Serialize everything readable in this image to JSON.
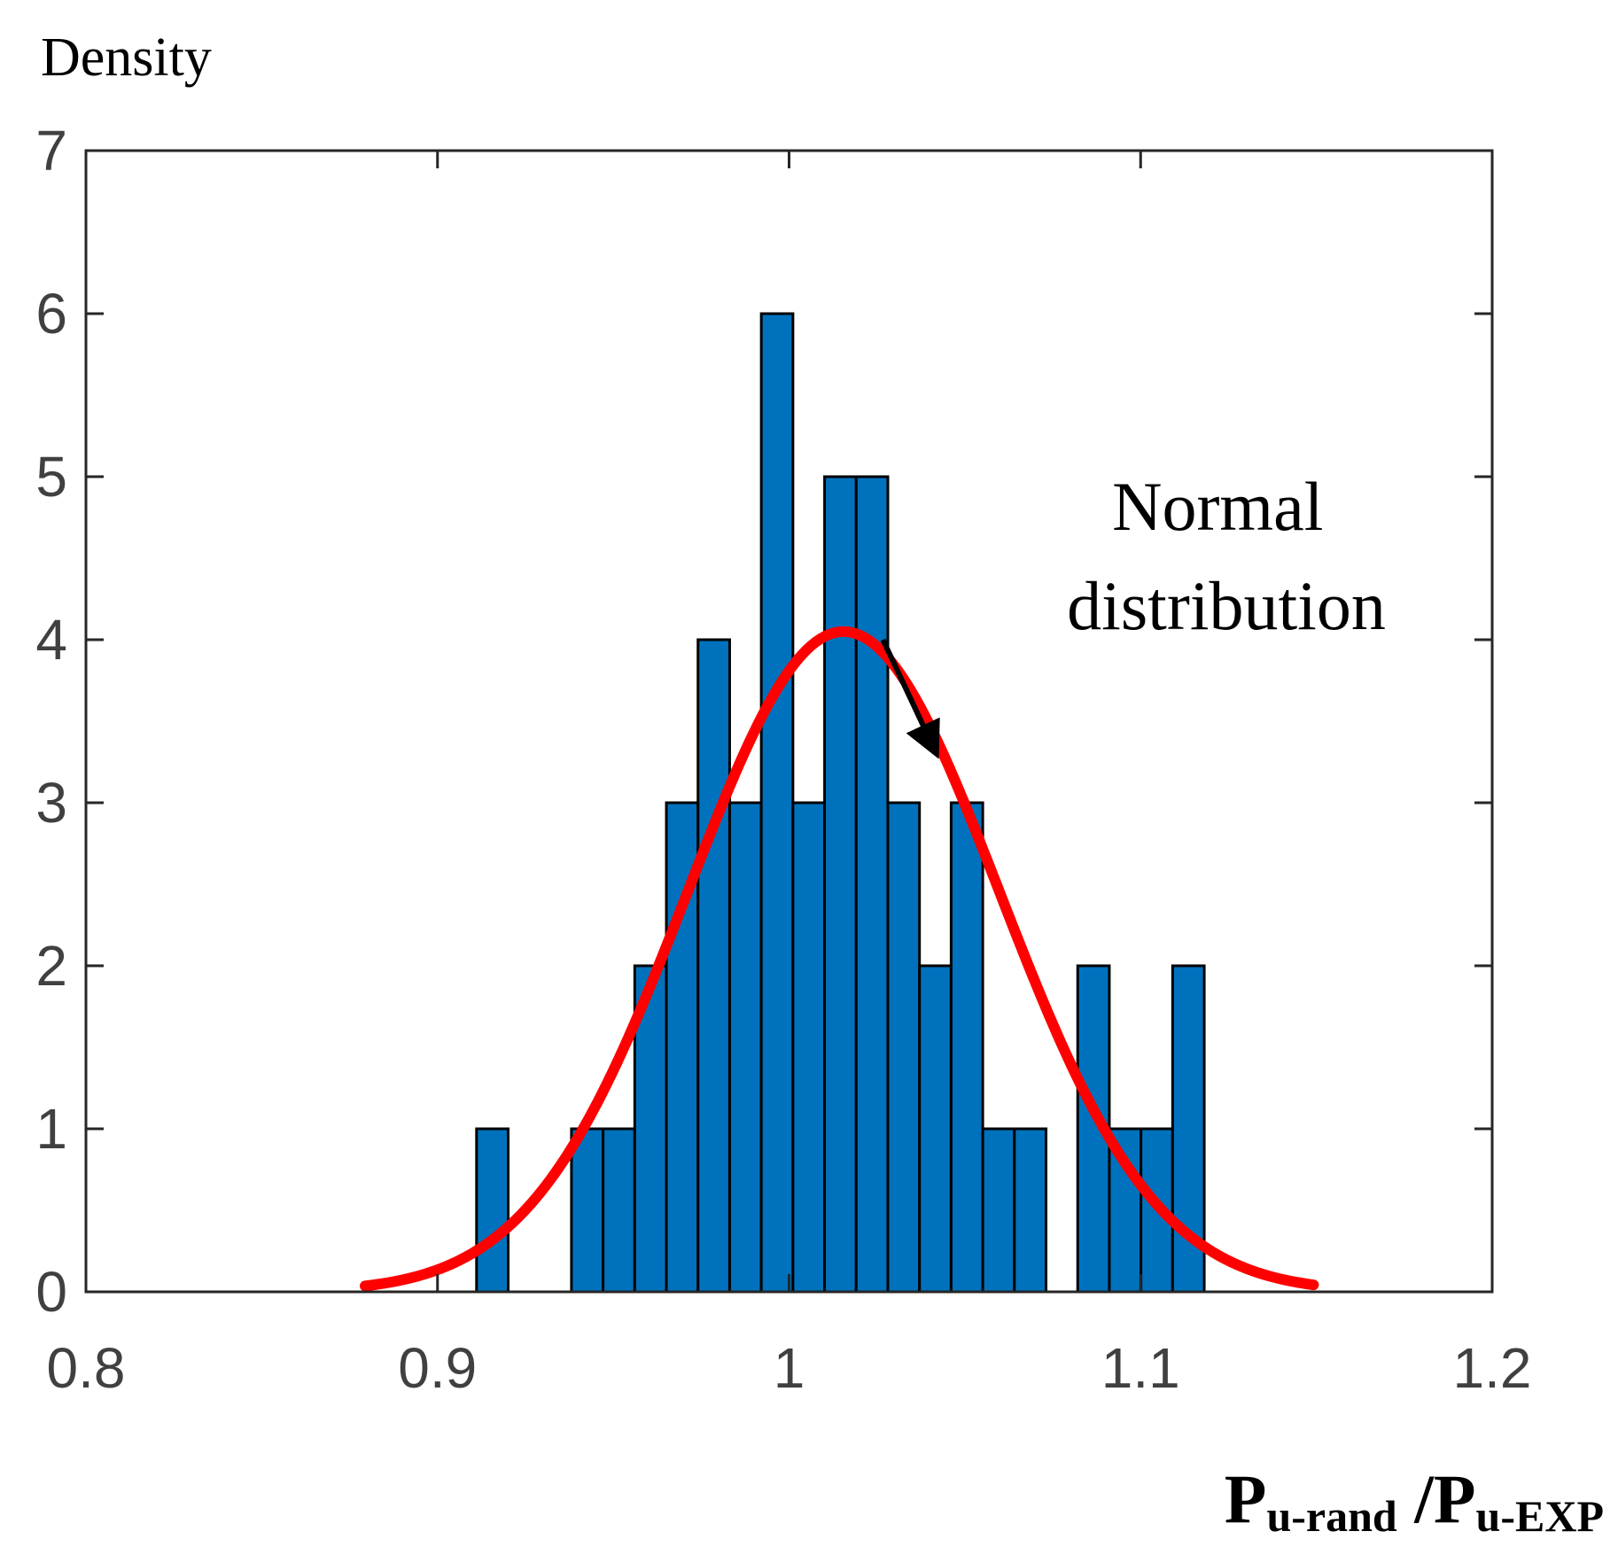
{
  "chart_data": {
    "type": "bar",
    "subtype": "histogram",
    "title": "",
    "ylabel": "Density",
    "xlabel": {
      "parts": [
        {
          "text": "P",
          "style": "normal"
        },
        {
          "text": "u-rand",
          "style": "sub"
        },
        {
          "text": " /P",
          "style": "normal"
        },
        {
          "text": "u-EXP",
          "style": "sub"
        }
      ]
    },
    "xlim": [
      0.8,
      1.2
    ],
    "ylim": [
      0,
      7
    ],
    "xticks": [
      0.8,
      0.9,
      1.0,
      1.1,
      1.2
    ],
    "xtick_labels": [
      "0.8",
      "0.9",
      "1",
      "1.1",
      "1.2"
    ],
    "yticks": [
      0,
      1,
      2,
      3,
      4,
      5,
      6,
      7
    ],
    "ytick_labels": [
      "0",
      "1",
      "2",
      "3",
      "4",
      "5",
      "6",
      "7"
    ],
    "bin_width": 0.009,
    "bins": [
      {
        "x0": 0.9111,
        "value": 1
      },
      {
        "x0": 0.9381,
        "value": 1
      },
      {
        "x0": 0.9471,
        "value": 1
      },
      {
        "x0": 0.9561,
        "value": 2
      },
      {
        "x0": 0.9651,
        "value": 3
      },
      {
        "x0": 0.9741,
        "value": 4
      },
      {
        "x0": 0.9831,
        "value": 3
      },
      {
        "x0": 0.9921,
        "value": 6
      },
      {
        "x0": 1.0011,
        "value": 3
      },
      {
        "x0": 1.0101,
        "value": 5
      },
      {
        "x0": 1.0191,
        "value": 5
      },
      {
        "x0": 1.0281,
        "value": 3
      },
      {
        "x0": 1.0371,
        "value": 2
      },
      {
        "x0": 1.0461,
        "value": 3
      },
      {
        "x0": 1.0551,
        "value": 1
      },
      {
        "x0": 1.0641,
        "value": 1
      },
      {
        "x0": 1.0821,
        "value": 2
      },
      {
        "x0": 1.0911,
        "value": 1
      },
      {
        "x0": 1.1001,
        "value": 1
      },
      {
        "x0": 1.1091,
        "value": 2
      }
    ],
    "fit": {
      "name": "Normal distribution",
      "mu": 1.0155,
      "sigma": 0.0443,
      "peak_density": 4.05,
      "x_range": [
        0.8794,
        1.1492
      ],
      "color": "#ff0000"
    },
    "bar_color": "#0072bd",
    "bar_edge_color": "#000000",
    "annotation": {
      "lines": [
        "Normal",
        "distribution"
      ],
      "arrow_from": [
        1.0267,
        4.0
      ],
      "arrow_to": [
        1.0417,
        3.31
      ]
    },
    "grid": false,
    "legend": "none"
  }
}
